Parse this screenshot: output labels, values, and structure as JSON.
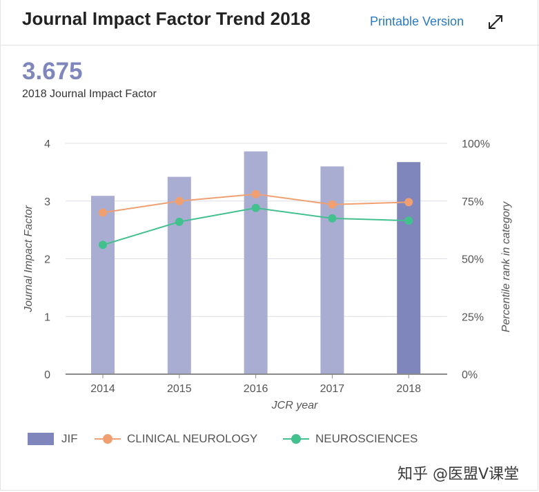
{
  "header": {
    "title": "Journal Impact Factor Trend 2018",
    "printable_label": "Printable Version",
    "expand_icon": "expand-arrows-icon"
  },
  "summary": {
    "value": "3.675",
    "caption": "2018 Journal Impact Factor"
  },
  "watermark": "知乎 @医盟V课堂",
  "chart_data": {
    "type": "bar",
    "x": [
      "2014",
      "2015",
      "2016",
      "2017",
      "2018"
    ],
    "xlabel": "JCR year",
    "ylabel_left": "Journal Impact Factor",
    "ylabel_right": "Percentile rank in category",
    "ylim_left": [
      0,
      4
    ],
    "yticks_left": [
      "0",
      "1",
      "2",
      "3",
      "4"
    ],
    "ylim_right": [
      0,
      100
    ],
    "yticks_right": [
      "0%",
      "25%",
      "50%",
      "75%",
      "100%"
    ],
    "grid": true,
    "legend_position": "bottom-left",
    "series": [
      {
        "name": "JIF",
        "type": "bar",
        "axis": "left",
        "color": "#a9add2",
        "highlight_color": "#7f86bb",
        "values": [
          3.09,
          3.42,
          3.86,
          3.6,
          3.675
        ]
      },
      {
        "name": "CLINICAL NEUROLOGY",
        "type": "line",
        "axis": "right",
        "color": "#f0a070",
        "values": [
          70,
          75,
          78,
          73.5,
          74.5
        ]
      },
      {
        "name": "NEUROSCIENCES",
        "type": "line",
        "axis": "right",
        "color": "#42c08e",
        "values": [
          56,
          66,
          72,
          67.5,
          66.5
        ]
      }
    ]
  }
}
